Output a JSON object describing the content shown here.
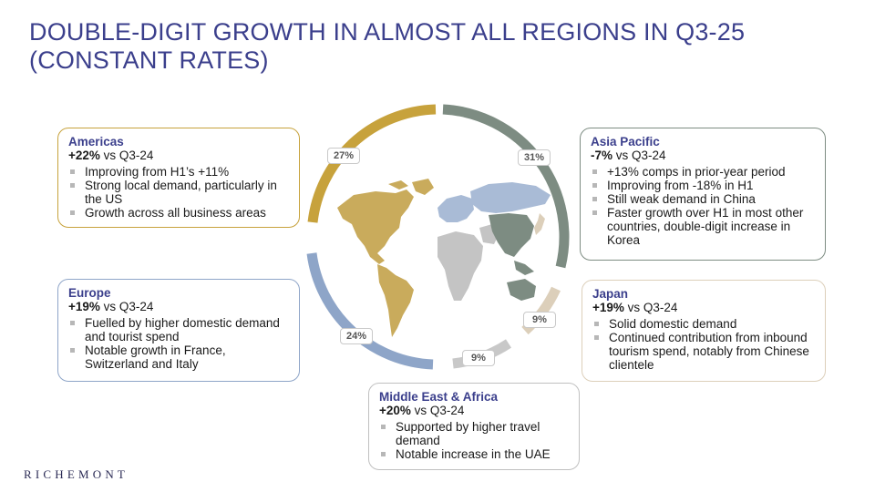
{
  "title": "DOUBLE-DIGIT GROWTH IN ALMOST ALL REGIONS IN Q3-25 (CONSTANT RATES)",
  "logo": "RICHEMONT",
  "colors": {
    "americas": "#c7a23c",
    "asia_pacific": "#7d8c82",
    "japan": "#dccfba",
    "middle_east_africa": "#c0c0c0",
    "europe": "#8ea5c8",
    "title": "#3b3f8c"
  },
  "regions": {
    "americas": {
      "name": "Americas",
      "growth": "+22%",
      "suffix": " vs Q3-24",
      "bullets": [
        "Improving from H1’s +11%",
        "Strong local demand, particularly in the US",
        "Growth across all business areas"
      ]
    },
    "europe": {
      "name": "Europe",
      "growth": "+19%",
      "suffix": " vs Q3-24",
      "bullets": [
        "Fuelled by higher domestic demand and tourist spend",
        "Notable growth in France, Switzerland and Italy"
      ]
    },
    "asia_pacific": {
      "name": "Asia Pacific",
      "growth": "-7%",
      "suffix": " vs Q3-24",
      "bullets": [
        "+13% comps in prior-year period",
        "Improving from -18% in H1",
        "Still weak demand in China",
        "Faster growth over H1 in most other countries, double-digit increase in Korea"
      ]
    },
    "japan": {
      "name": "Japan",
      "growth": "+19%",
      "suffix": " vs Q3-24",
      "bullets": [
        "Solid domestic demand",
        "Continued contribution from inbound tourism spend, notably from Chinese clientele"
      ]
    },
    "mea": {
      "name": "Middle East & Africa",
      "growth": "+20%",
      "suffix": " vs Q3-24",
      "bullets": [
        "Supported by higher travel demand",
        "Notable increase in the UAE"
      ]
    }
  },
  "shares": {
    "americas": "27%",
    "asia_pacific": "31%",
    "japan": "9%",
    "mea": "9%",
    "europe": "24%"
  }
}
